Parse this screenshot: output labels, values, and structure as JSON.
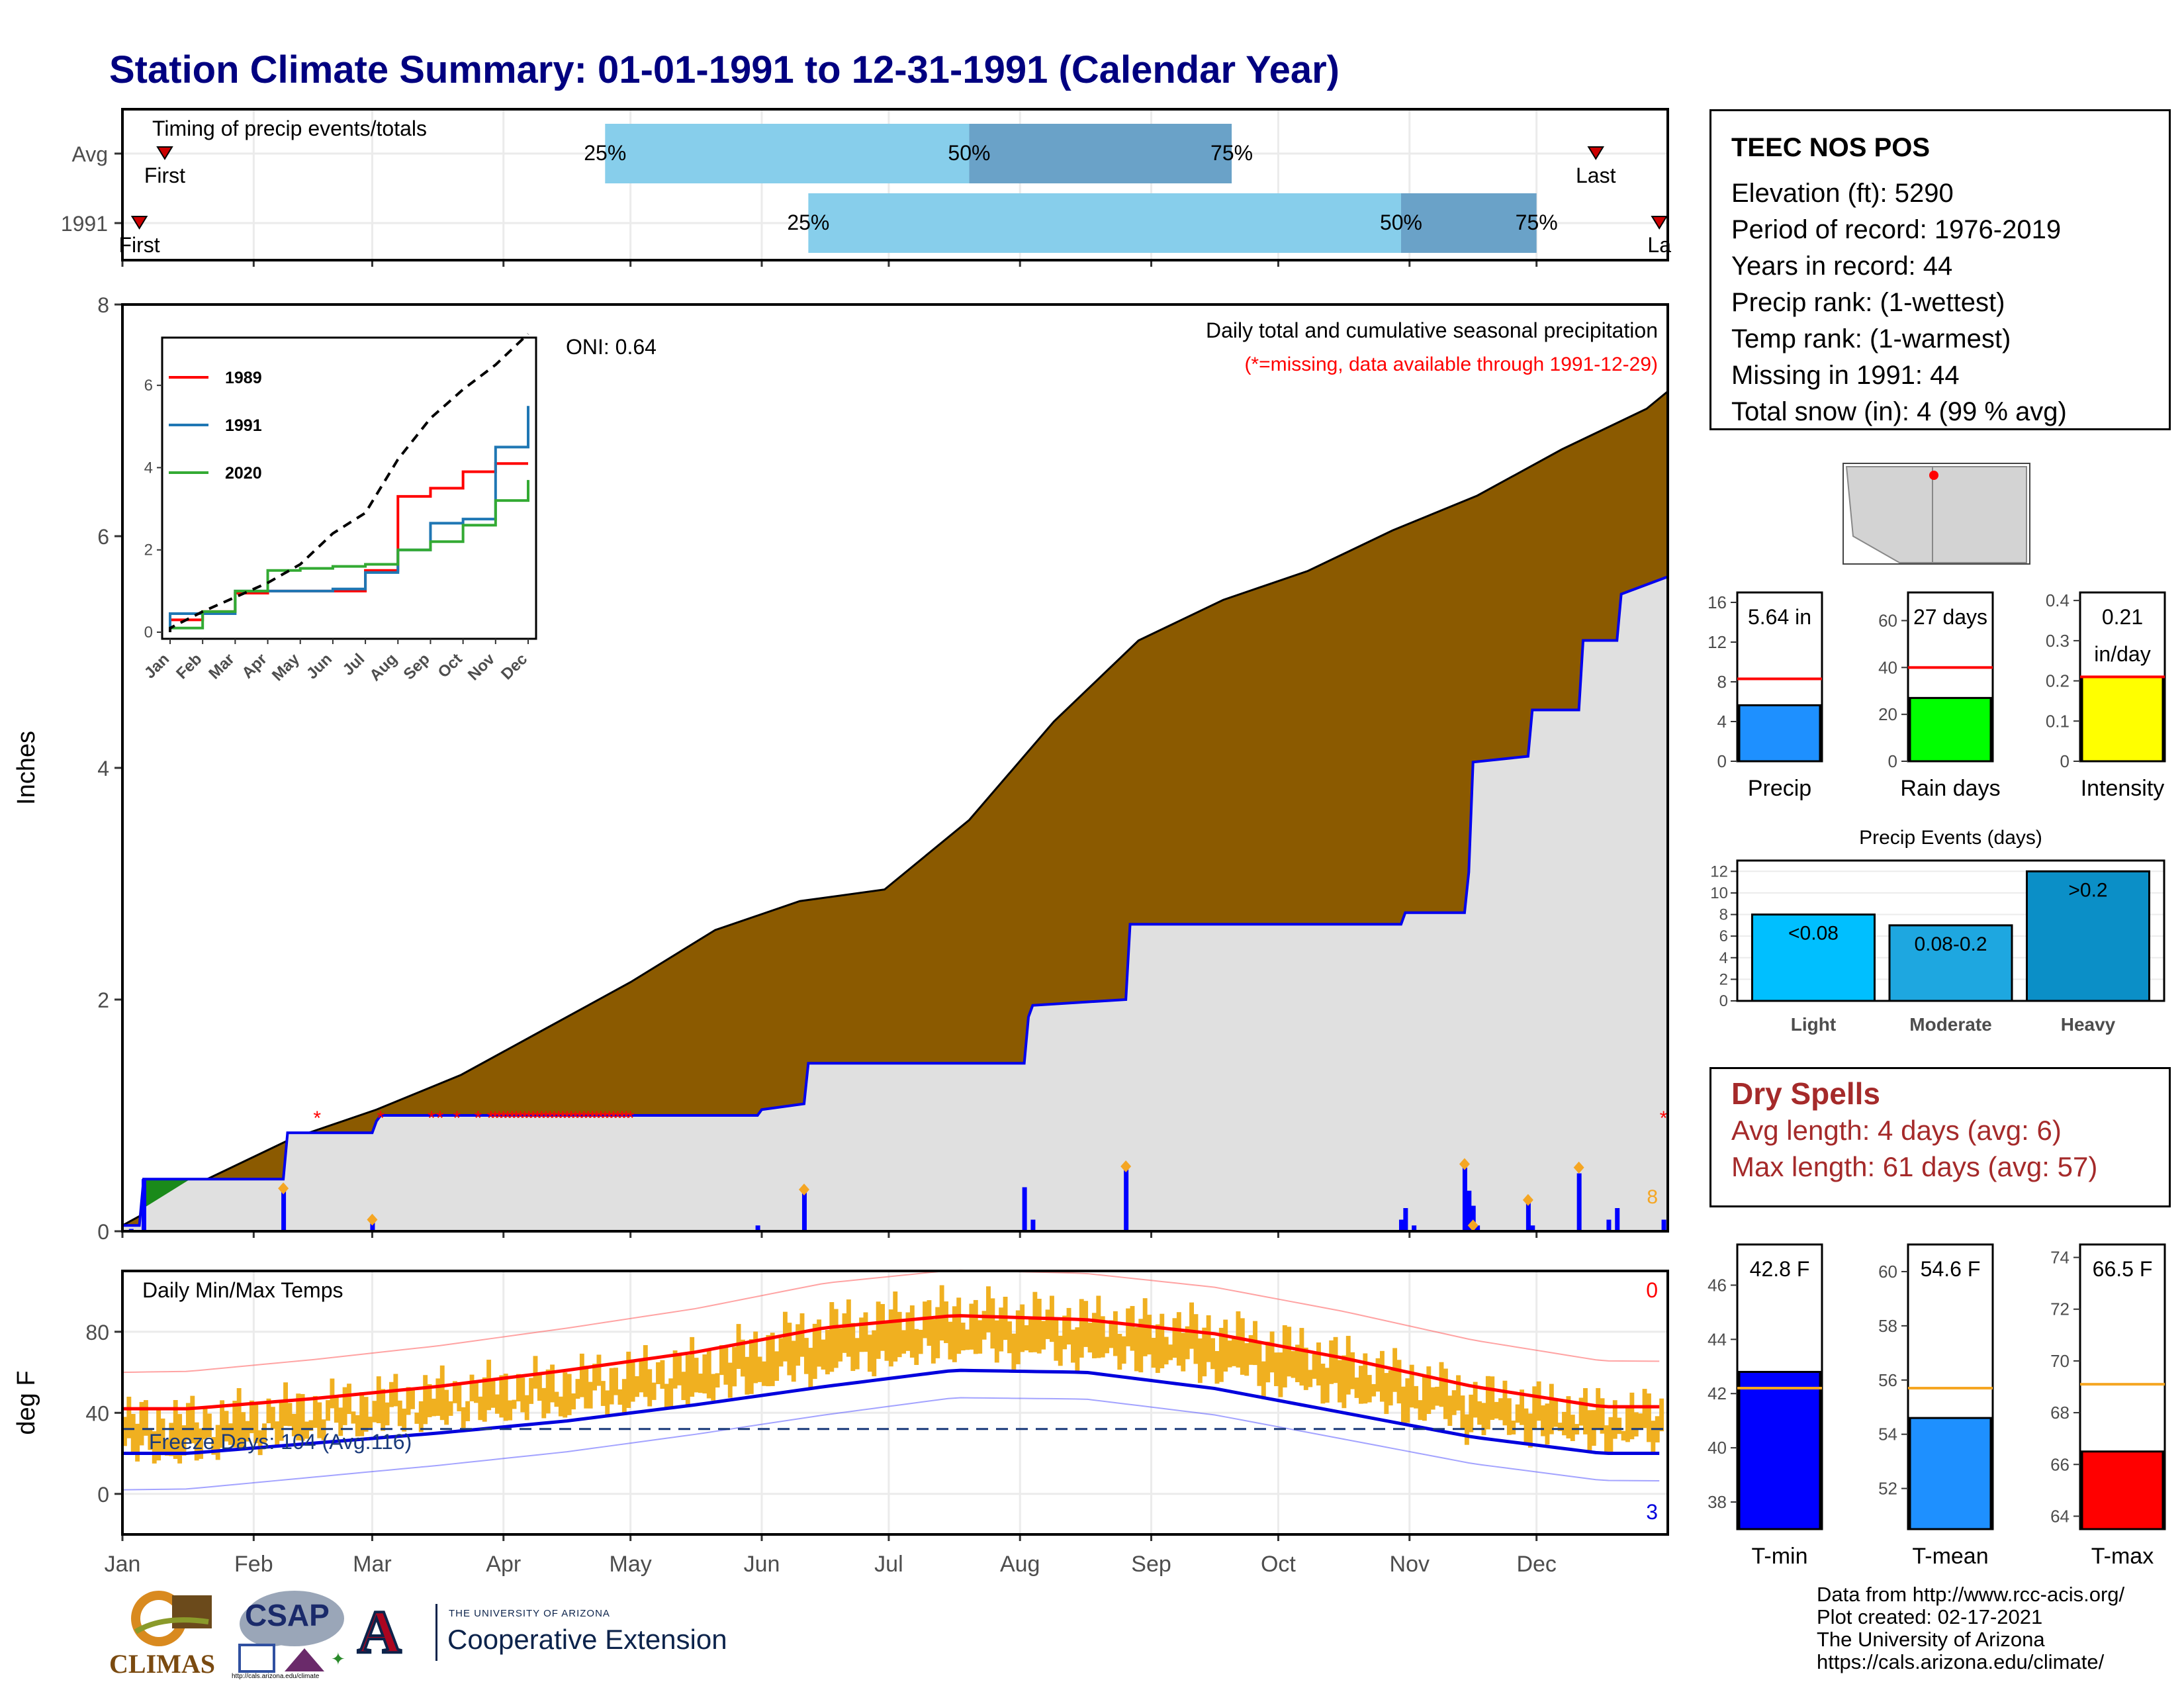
{
  "title": "Station Climate Summary: 01-01-1991 to 12-31-1991 (Calendar Year)",
  "station": {
    "name": "TEEC NOS POS",
    "lines": [
      "Elevation (ft): 5290",
      "Period of record: 1976-2019",
      "Years in record: 44",
      "Precip rank:  (1-wettest)",
      "Temp rank:  (1-warmest)",
      "Missing in 1991: 44",
      "Total snow (in): 4 (99 % avg)"
    ]
  },
  "dry_spells": {
    "title": "Dry Spells",
    "avg_length": "Avg length: 4 days (avg: 6)",
    "max_length": "Max length: 61 days (avg: 57)"
  },
  "footer": {
    "lines": [
      "Data from http://www.rcc-acis.org/",
      "Plot created: 02-17-2021",
      "The University of Arizona",
      "https://cals.arizona.edu/climate/"
    ]
  },
  "logos": {
    "climas": "CLIMAS",
    "csap": "CSAP",
    "csap_url": "http://cals.arizona.edu/climate",
    "ua_letter": "A",
    "ua_small": "THE UNIVERSITY OF ARIZONA",
    "ua_main": "Cooperative Extension"
  },
  "colors": {
    "title": "#000080",
    "brown_fill": "#8b5a00",
    "gray_fill": "#e0e0e0",
    "blue_line": "#0000ee",
    "light_blue": "#87ceeb",
    "mid_blue": "#6aa2c8",
    "orange": "#f0b020",
    "red": "#ff0000",
    "dry_spell_text": "#a52a2a"
  },
  "chart_data": [
    {
      "type": "bar",
      "id": "timing",
      "title": "Timing of precip events/totals",
      "categories": [
        "Avg",
        "1991"
      ],
      "series": [
        {
          "name": "Avg",
          "first_doy": 10,
          "q25_doy": 114,
          "q50_doy": 200,
          "q75_doy": 262,
          "last_doy": 348,
          "labels": {
            "first": "First",
            "q25": "25%",
            "q50": "50%",
            "q75": "75%",
            "last": "Last"
          }
        },
        {
          "name": "1991",
          "first_doy": 4,
          "q25_doy": 162,
          "q50_doy": 302,
          "q75_doy": 334,
          "last_doy": 363,
          "labels": {
            "first": "First",
            "q25": "25%",
            "q50": "50%",
            "q75": "75%",
            "last": "La"
          }
        }
      ]
    },
    {
      "type": "area",
      "id": "precip",
      "title": "Daily total and cumulative seasonal precipitation",
      "subtitle": "(*=missing, data available through 1991-12-29)",
      "ylabel": "Inches",
      "ylim": [
        0,
        8
      ],
      "yticks": [
        0,
        2,
        4,
        6,
        8
      ],
      "oni_label": "ONI: 0.64",
      "avg_cumulative": {
        "doy": [
          0,
          20,
          40,
          60,
          80,
          100,
          120,
          140,
          160,
          180,
          200,
          220,
          240,
          260,
          280,
          300,
          320,
          340,
          360,
          365
        ],
        "values": [
          0.05,
          0.45,
          0.8,
          1.05,
          1.35,
          1.75,
          2.15,
          2.6,
          2.85,
          2.95,
          3.55,
          4.4,
          5.1,
          5.45,
          5.7,
          6.05,
          6.35,
          6.75,
          7.1,
          7.25
        ]
      },
      "cumulative_1991": {
        "doy": [
          0,
          4,
          5,
          38,
          39,
          59,
          60,
          61,
          150,
          151,
          161,
          162,
          213,
          214,
          215,
          237,
          238,
          302,
          303,
          317,
          318,
          319,
          332,
          333,
          344,
          345,
          353,
          354,
          365
        ],
        "values": [
          0.05,
          0.05,
          0.45,
          0.45,
          0.85,
          0.85,
          0.95,
          1.0,
          1.0,
          1.05,
          1.1,
          1.45,
          1.45,
          1.85,
          1.95,
          2.0,
          2.65,
          2.65,
          2.75,
          2.75,
          3.1,
          4.05,
          4.1,
          4.5,
          4.5,
          5.1,
          5.1,
          5.5,
          5.65
        ]
      },
      "daily_bars": {
        "doy": [
          2,
          5,
          38,
          59,
          150,
          161,
          213,
          215,
          237,
          302,
          303,
          305,
          317,
          318,
          319,
          320,
          332,
          333,
          344,
          351,
          353,
          364
        ],
        "values": [
          0.02,
          0.45,
          0.35,
          0.08,
          0.05,
          0.35,
          0.38,
          0.1,
          0.55,
          0.1,
          0.2,
          0.05,
          0.55,
          0.35,
          0.22,
          0.05,
          0.25,
          0.05,
          0.5,
          0.1,
          0.2,
          0.1
        ]
      },
      "snow_markers": {
        "doy": [
          38,
          59,
          161,
          237,
          317,
          319,
          332,
          344
        ],
        "values": [
          0.37,
          0.1,
          0.36,
          0.56,
          0.58,
          0.05,
          0.27,
          0.55
        ]
      },
      "missing_doy": [
        46,
        61,
        73,
        75,
        79,
        84,
        87,
        88,
        89,
        90,
        91,
        92,
        93,
        94,
        95,
        96,
        97,
        98,
        99,
        100,
        101,
        102,
        103,
        104,
        105,
        106,
        107,
        108,
        109,
        110,
        111,
        112,
        113,
        114,
        115,
        116,
        117,
        118,
        119,
        120,
        364
      ],
      "annotation": "8",
      "months": [
        "Jan",
        "Feb",
        "Mar",
        "Apr",
        "May",
        "Jun",
        "Jul",
        "Aug",
        "Sep",
        "Oct",
        "Nov",
        "Dec"
      ]
    },
    {
      "type": "line",
      "id": "inset",
      "x": [
        "Jan",
        "Feb",
        "Mar",
        "Apr",
        "May",
        "Jun",
        "Jul",
        "Aug",
        "Sep",
        "Oct",
        "Nov",
        "Dec"
      ],
      "ylim": [
        0,
        7
      ],
      "yticks": [
        0,
        2,
        4,
        6
      ],
      "series": [
        {
          "name": "1989",
          "color": "#ff0000",
          "values": [
            0.3,
            0.5,
            0.95,
            1.0,
            1.0,
            1.0,
            1.5,
            3.3,
            3.5,
            3.9,
            4.1,
            4.1
          ]
        },
        {
          "name": "1991",
          "color": "#1f77b4",
          "values": [
            0.45,
            0.45,
            1.0,
            1.0,
            1.0,
            1.05,
            1.45,
            2.0,
            2.65,
            2.75,
            4.5,
            5.5
          ]
        },
        {
          "name": "2020",
          "color": "#33aa33",
          "values": [
            0.1,
            0.5,
            1.0,
            1.5,
            1.55,
            1.6,
            1.65,
            2.0,
            2.2,
            2.6,
            3.2,
            3.7
          ]
        },
        {
          "name": "",
          "color": "#000000",
          "dashed": true,
          "values": [
            0.1,
            0.5,
            0.85,
            1.2,
            1.65,
            2.4,
            2.9,
            4.2,
            5.2,
            5.9,
            6.5,
            7.25
          ]
        }
      ]
    },
    {
      "type": "bar",
      "id": "precip_summary",
      "panels": [
        {
          "label": "Precip",
          "value": 5.64,
          "avg": 8.3,
          "ylim": [
            0,
            17
          ],
          "yticks": [
            0,
            4,
            8,
            12,
            16
          ],
          "text": "5.64 in",
          "color": "#1e90ff"
        },
        {
          "label": "Rain days",
          "value": 27,
          "avg": 40,
          "ylim": [
            0,
            72
          ],
          "yticks": [
            0,
            20,
            40,
            60
          ],
          "text": "27 days",
          "color": "#00ff00"
        },
        {
          "label": "Intensity",
          "value": 0.21,
          "avg": 0.21,
          "ylim": [
            0,
            0.42
          ],
          "yticks": [
            0.0,
            0.1,
            0.2,
            0.3,
            0.4
          ],
          "text": "0.21\nin/day",
          "color": "#ffff00"
        }
      ]
    },
    {
      "type": "bar",
      "id": "precip_events",
      "title": "Precip Events (days)",
      "categories": [
        "Light",
        "Moderate",
        "Heavy"
      ],
      "values": [
        8,
        7,
        12
      ],
      "bar_labels": [
        "<0.08",
        "0.08-0.2",
        ">0.2"
      ],
      "ylim": [
        0,
        13
      ],
      "yticks": [
        0,
        2,
        4,
        6,
        8,
        10,
        12
      ]
    },
    {
      "type": "line",
      "id": "temps",
      "title": "Daily Min/Max Temps",
      "ylabel": "deg F",
      "ylim": [
        -20,
        110
      ],
      "yticks": [
        0,
        40,
        80
      ],
      "freeze_label": "Freeze Days: 104 (Avg:116)",
      "freeze_line": 32,
      "corner_top": "0",
      "corner_bottom": "3",
      "months": [
        "Jan",
        "Feb",
        "Mar",
        "Apr",
        "May",
        "Jun",
        "Jul",
        "Aug",
        "Sep",
        "Oct",
        "Nov",
        "Dec"
      ],
      "avg_max_monthly": [
        42,
        47,
        53,
        61,
        70,
        82,
        88,
        86,
        79,
        67,
        53,
        43
      ],
      "avg_min_monthly": [
        20,
        25,
        30,
        36,
        44,
        53,
        61,
        60,
        52,
        40,
        28,
        20
      ],
      "obs_max_monthly": [
        38,
        45,
        52,
        58,
        66,
        85,
        92,
        88,
        82,
        68,
        50,
        42
      ],
      "obs_min_monthly": [
        10,
        24,
        30,
        35,
        40,
        50,
        60,
        58,
        50,
        38,
        25,
        18
      ]
    },
    {
      "type": "bar",
      "id": "temp_summary",
      "panels": [
        {
          "label": "T-min",
          "value": 42.8,
          "avg": 42.2,
          "ylim": [
            37,
            47.5
          ],
          "yticks": [
            38,
            40,
            42,
            44,
            46
          ],
          "text": "42.8 F",
          "color": "#0000ff"
        },
        {
          "label": "T-mean",
          "value": 54.6,
          "avg": 55.7,
          "ylim": [
            50.5,
            61
          ],
          "yticks": [
            52,
            54,
            56,
            58,
            60
          ],
          "text": "54.6 F",
          "color": "#1e90ff"
        },
        {
          "label": "T-max",
          "value": 66.5,
          "avg": 69.1,
          "ylim": [
            63.5,
            74.5
          ],
          "yticks": [
            64,
            66,
            68,
            70,
            72,
            74
          ],
          "text": "66.5 F",
          "color": "#ff0000"
        }
      ]
    }
  ]
}
